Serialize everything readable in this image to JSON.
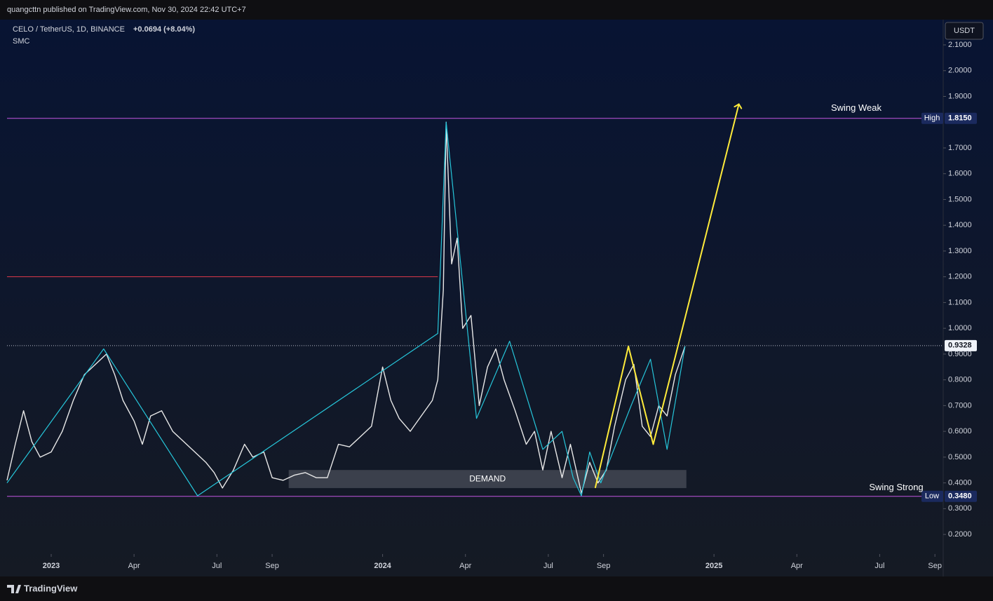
{
  "header": {
    "publisher": "quangcttn published on TradingView.com, Nov 30, 2024 22:42 UTC+7",
    "symbol": "CELO / TetherUS, 1D, BINANCE",
    "change": "+0.0694 (+8.04%)",
    "indicator": "SMC",
    "currency": "USDT"
  },
  "footer": {
    "brand": "TradingView"
  },
  "chart_data": {
    "type": "line",
    "color": "#e8e8e8",
    "x": [
      -1.6,
      -1.3,
      -1.0,
      -0.7,
      -0.4,
      0,
      0.4,
      0.8,
      1.2,
      1.6,
      2.0,
      2.3,
      2.6,
      3.0,
      3.3,
      3.6,
      4.0,
      4.4,
      4.8,
      5.2,
      5.6,
      5.9,
      6.2,
      6.6,
      7.0,
      7.3,
      7.7,
      8.0,
      8.4,
      8.8,
      9.2,
      9.6,
      10.0,
      10.4,
      10.8,
      11.2,
      11.6,
      12.0,
      12.3,
      12.6,
      13.0,
      13.4,
      13.8,
      14.0,
      14.2,
      14.3,
      14.5,
      14.7,
      14.9,
      15.2,
      15.5,
      15.8,
      16.1,
      16.4,
      16.8,
      17.2,
      17.5,
      17.8,
      18.1,
      18.5,
      18.8,
      19.2,
      19.5,
      19.8,
      20.1,
      20.4,
      20.8,
      21.1,
      21.4,
      21.7,
      22.0,
      22.3,
      22.6,
      22.95
    ],
    "values": [
      0.41,
      0.55,
      0.68,
      0.56,
      0.5,
      0.52,
      0.6,
      0.72,
      0.82,
      0.86,
      0.9,
      0.82,
      0.72,
      0.64,
      0.55,
      0.66,
      0.68,
      0.6,
      0.56,
      0.52,
      0.48,
      0.44,
      0.38,
      0.45,
      0.55,
      0.5,
      0.52,
      0.42,
      0.41,
      0.43,
      0.44,
      0.42,
      0.42,
      0.55,
      0.54,
      0.58,
      0.62,
      0.85,
      0.72,
      0.65,
      0.6,
      0.66,
      0.72,
      0.8,
      1.15,
      1.8,
      1.25,
      1.35,
      1.0,
      1.05,
      0.7,
      0.85,
      0.92,
      0.8,
      0.68,
      0.55,
      0.6,
      0.45,
      0.6,
      0.42,
      0.55,
      0.36,
      0.48,
      0.4,
      0.45,
      0.62,
      0.8,
      0.86,
      0.62,
      0.58,
      0.7,
      0.66,
      0.82,
      0.93
    ],
    "xlim": [
      -1.6,
      32.3
    ],
    "xticks": [
      {
        "value": 0,
        "label": "2023"
      },
      {
        "value": 3,
        "label": "Apr"
      },
      {
        "value": 6,
        "label": "Jul"
      },
      {
        "value": 8,
        "label": "Sep"
      },
      {
        "value": 12,
        "label": "2024"
      },
      {
        "value": 15,
        "label": "Apr"
      },
      {
        "value": 18,
        "label": "Jul"
      },
      {
        "value": 20,
        "label": "Sep"
      },
      {
        "value": 24,
        "label": "2025"
      },
      {
        "value": 27,
        "label": "Apr"
      },
      {
        "value": 30,
        "label": "Jul"
      },
      {
        "value": 32,
        "label": "Sep"
      }
    ],
    "ylim": [
      0.124,
      2.198
    ],
    "yticks": [
      {
        "value": 2.1,
        "label": "2.1000"
      },
      {
        "value": 2.0,
        "label": "2.0000"
      },
      {
        "value": 1.9,
        "label": "1.9000"
      },
      {
        "value": 1.7,
        "label": "1.7000"
      },
      {
        "value": 1.6,
        "label": "1.6000"
      },
      {
        "value": 1.5,
        "label": "1.5000"
      },
      {
        "value": 1.4,
        "label": "1.4000"
      },
      {
        "value": 1.3,
        "label": "1.3000"
      },
      {
        "value": 1.2,
        "label": "1.2000"
      },
      {
        "value": 1.1,
        "label": "1.1000"
      },
      {
        "value": 1.0,
        "label": "1.0000"
      },
      {
        "value": 0.9,
        "label": "0.9000"
      },
      {
        "value": 0.8,
        "label": "0.8000"
      },
      {
        "value": 0.7,
        "label": "0.7000"
      },
      {
        "value": 0.6,
        "label": "0.6000"
      },
      {
        "value": 0.5,
        "label": "0.5000"
      },
      {
        "value": 0.4,
        "label": "0.4000"
      },
      {
        "value": 0.3,
        "label": "0.3000"
      },
      {
        "value": 0.2,
        "label": "0.2000"
      }
    ],
    "levels": [
      {
        "value": 1.815,
        "label": "1.8150",
        "tag": "High",
        "color": "#c356e0"
      },
      {
        "value": 0.348,
        "label": "0.3480",
        "tag": "Low",
        "color": "#c356e0"
      },
      {
        "value": 0.9328,
        "label": "0.9328",
        "color": "#b8bcc8"
      },
      {
        "value": 1.2,
        "color": "#e0384a",
        "x_end": 14.0
      }
    ],
    "zones": [
      {
        "label": "DEMAND",
        "low": 0.38,
        "high": 0.45,
        "x": [
          8.6,
          23.0
        ]
      }
    ],
    "annotations": [
      {
        "text": "Swing Weak"
      },
      {
        "text": "Swing Strong"
      }
    ],
    "zigzag": {
      "color": "#26c6da",
      "x": [
        -1.6,
        1.9,
        5.3,
        14.0,
        14.3,
        15.4,
        16.6,
        17.8,
        18.5,
        18.9,
        19.2,
        19.5,
        19.9,
        21.0,
        21.7,
        22.3,
        22.95
      ],
      "values": [
        0.4,
        0.92,
        0.35,
        0.98,
        1.8,
        0.65,
        0.95,
        0.53,
        0.6,
        0.42,
        0.35,
        0.52,
        0.4,
        0.7,
        0.88,
        0.53,
        0.93
      ]
    },
    "projection": {
      "color": "#ffeb3b",
      "x": [
        19.7,
        20.9,
        21.8,
        24.9
      ],
      "values": [
        0.38,
        0.93,
        0.55,
        1.87
      ]
    }
  }
}
